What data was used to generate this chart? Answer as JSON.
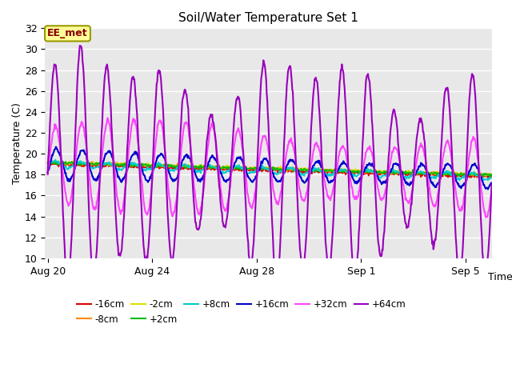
{
  "title": "Soil/Water Temperature Set 1",
  "xlabel": "Time",
  "ylabel": "Temperature (C)",
  "ylim": [
    10,
    32
  ],
  "yticks": [
    10,
    12,
    14,
    16,
    18,
    20,
    22,
    24,
    26,
    28,
    30,
    32
  ],
  "plot_bg_color": "#e8e8e8",
  "series": [
    {
      "label": "-16cm",
      "color": "#dd0000"
    },
    {
      "label": "-8cm",
      "color": "#ff8800"
    },
    {
      "label": "-2cm",
      "color": "#dddd00"
    },
    {
      "label": "+2cm",
      "color": "#00bb00"
    },
    {
      "label": "+8cm",
      "color": "#00cccc"
    },
    {
      "label": "+16cm",
      "color": "#0000cc"
    },
    {
      "label": "+32cm",
      "color": "#ff44ff"
    },
    {
      "label": "+64cm",
      "color": "#9900bb"
    }
  ],
  "annotation_text": "EE_met",
  "annotation_bg": "#ffff99",
  "annotation_border": "#999900",
  "n_days": 17,
  "n_points_per_day": 48
}
